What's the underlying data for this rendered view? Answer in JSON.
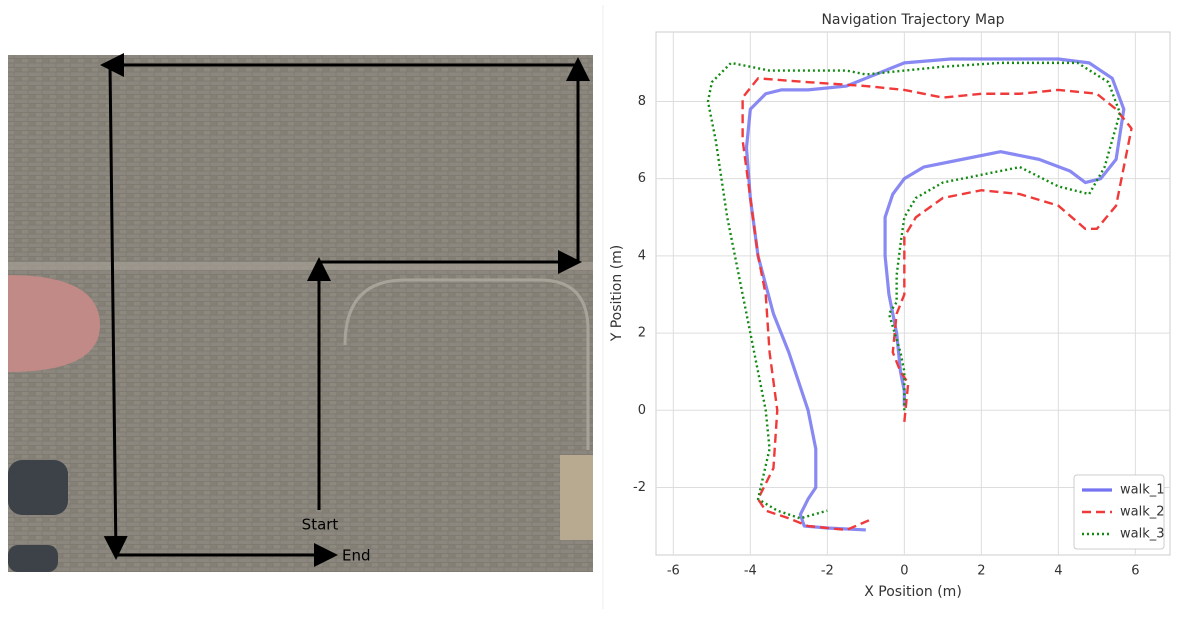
{
  "photo": {
    "start_label": "Start",
    "end_label": "End"
  },
  "chart_data": {
    "type": "line",
    "title": "Navigation Trajectory Map",
    "x_label": "X Position (m)",
    "y_label": "Y Position (m)",
    "xlim": [
      -6.45,
      6.9
    ],
    "ylim": [
      -3.75,
      9.8
    ],
    "xticks": [
      -6,
      -4,
      -2,
      0,
      2,
      4,
      6
    ],
    "yticks": [
      -2,
      0,
      2,
      4,
      6,
      8
    ],
    "grid": true,
    "legend": "lower right",
    "series": [
      {
        "name": "walk_1",
        "color": "#7474f2",
        "style": "solid",
        "x": [
          0,
          0,
          -0.1,
          -0.2,
          -0.4,
          -0.5,
          -0.5,
          -0.3,
          0,
          0.5,
          1.5,
          2.5,
          3.5,
          4.3,
          4.7,
          5.1,
          5.5,
          5.7,
          5.4,
          4.8,
          4,
          2.5,
          1.2,
          0,
          -0.5,
          -1,
          -1.5,
          -2.5,
          -3.2,
          -3.6,
          -4,
          -4.1,
          -4,
          -3.8,
          -3.4,
          -3,
          -2.5,
          -2.3,
          -2.3,
          -2.5,
          -2.7,
          -2.6,
          -2,
          -1
        ],
        "values": [
          0.1,
          0.5,
          1,
          2,
          3,
          4,
          5,
          5.6,
          6,
          6.3,
          6.5,
          6.7,
          6.5,
          6.2,
          5.9,
          6,
          6.5,
          7.8,
          8.6,
          9,
          9.1,
          9.1,
          9.1,
          9,
          8.8,
          8.6,
          8.4,
          8.3,
          8.3,
          8.2,
          7.8,
          6.8,
          5.5,
          4,
          2.5,
          1.5,
          0,
          -1,
          -2,
          -2.3,
          -2.7,
          -3,
          -3.05,
          -3.1
        ]
      },
      {
        "name": "walk_2",
        "color": "#f03a3a",
        "style": "dashed",
        "x": [
          0,
          0.1,
          -0.1,
          -0.3,
          -0.2,
          0,
          0,
          0,
          0.3,
          1,
          2,
          3,
          4,
          4.7,
          5,
          5.5,
          5.9,
          5.5,
          5,
          4,
          3,
          2,
          1,
          0,
          -1,
          -2.5,
          -3.8,
          -4.2,
          -4.2,
          -4,
          -3.8,
          -3.6,
          -3.5,
          -3.3,
          -3.4,
          -3.8,
          -3.6,
          -3,
          -2.5,
          -1.5,
          -0.8
        ],
        "values": [
          -0.3,
          0.7,
          1,
          1.5,
          2.5,
          3,
          4,
          4.5,
          5,
          5.5,
          5.7,
          5.6,
          5.3,
          4.7,
          4.7,
          5.3,
          7.3,
          7.8,
          8.2,
          8.3,
          8.2,
          8.2,
          8.1,
          8.3,
          8.4,
          8.5,
          8.6,
          8.1,
          7,
          5.5,
          4,
          3,
          1.5,
          0,
          -1.5,
          -2.3,
          -2.6,
          -2.8,
          -3,
          -3.1,
          -2.8
        ]
      },
      {
        "name": "walk_3",
        "color": "#128a12",
        "style": "dotted",
        "x": [
          0,
          0,
          -0.1,
          -0.4,
          -0.2,
          -0.2,
          -0.1,
          0,
          0.3,
          1,
          2,
          3,
          4,
          4.8,
          5.2,
          5.4,
          5.6,
          5.3,
          4.5,
          3.5,
          2.5,
          1,
          0,
          -1,
          -1.5,
          -2,
          -3,
          -3.5,
          -4.5,
          -5,
          -5.1,
          -4.9,
          -4.6,
          -4.3,
          -4,
          -3.6,
          -3.5,
          -3.8,
          -3.3,
          -2.7,
          -2
        ],
        "values": [
          0,
          1,
          1.5,
          2.5,
          2.8,
          3.5,
          4.3,
          5,
          5.5,
          5.9,
          6.1,
          6.3,
          5.8,
          5.6,
          6.3,
          7,
          7.7,
          8.5,
          9,
          9,
          9,
          8.9,
          8.8,
          8.7,
          8.8,
          8.8,
          8.8,
          8.8,
          9,
          8.5,
          8,
          7,
          5,
          3.5,
          2,
          0,
          -1,
          -2.3,
          -2.6,
          -2.8,
          -2.6
        ]
      }
    ]
  }
}
